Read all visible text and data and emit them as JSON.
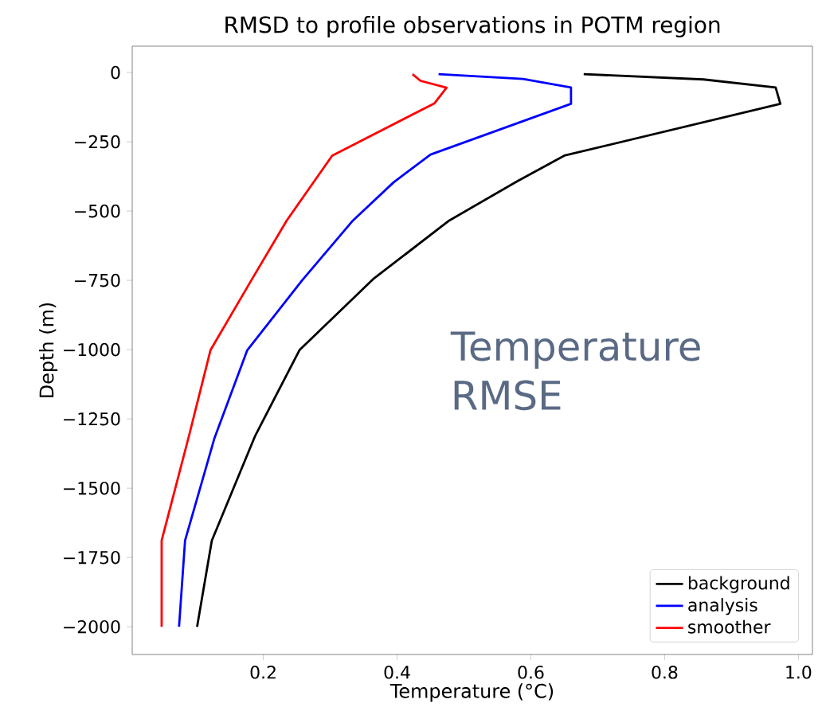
{
  "chart_data": {
    "type": "line",
    "title": "RMSD to profile observations in POTM region",
    "xlabel": "Temperature (°C)",
    "ylabel": "Depth (m)",
    "xlim": [
      0.004,
      1.021
    ],
    "ylim": [
      -2100,
      95
    ],
    "xticks": [
      0.2,
      0.4,
      0.6,
      0.8,
      {
        "value": 1.0,
        "label": "1.0"
      }
    ],
    "yticks": [
      {
        "value": 0,
        "label": "0"
      },
      {
        "value": -250,
        "label": "−250"
      },
      {
        "value": -500,
        "label": "−500"
      },
      {
        "value": -750,
        "label": "−750"
      },
      {
        "value": -1000,
        "label": "−1000"
      },
      {
        "value": -1250,
        "label": "−1250"
      },
      {
        "value": -1500,
        "label": "−1500"
      },
      {
        "value": -1750,
        "label": "−1750"
      },
      {
        "value": -2000,
        "label": "−2000"
      }
    ],
    "legend": "bottom right",
    "grid": false,
    "marker": "none",
    "line_style": "solid",
    "annotations": [
      "Temperature RMSE"
    ],
    "series": [
      {
        "name": "background",
        "color": "#000000",
        "x": [
          0.679,
          0.858,
          0.966,
          0.973,
          0.65,
          0.58,
          0.478,
          0.364,
          0.254,
          0.188,
          0.123,
          0.101
        ],
        "values": [
          -6,
          -25,
          -54,
          -113,
          -300,
          -392,
          -534,
          -746,
          -1002,
          -1310,
          -1689,
          -2000
        ]
      },
      {
        "name": "analysis",
        "color": "#0000ff",
        "x": [
          0.462,
          0.588,
          0.66,
          0.66,
          0.45,
          0.395,
          0.334,
          0.258,
          0.176,
          0.127,
          0.083,
          0.074
        ],
        "values": [
          -6,
          -23,
          -54,
          -113,
          -296,
          -396,
          -534,
          -750,
          -1002,
          -1319,
          -1689,
          -2000
        ]
      },
      {
        "name": "smoother",
        "color": "#ff0000",
        "x": [
          0.423,
          0.435,
          0.474,
          0.456,
          0.303,
          0.235,
          0.182,
          0.121,
          0.089,
          0.048,
          0.048
        ],
        "values": [
          -6,
          -30,
          -55,
          -111,
          -300,
          -534,
          -750,
          -1002,
          -1310,
          -1689,
          -2000
        ]
      }
    ]
  }
}
